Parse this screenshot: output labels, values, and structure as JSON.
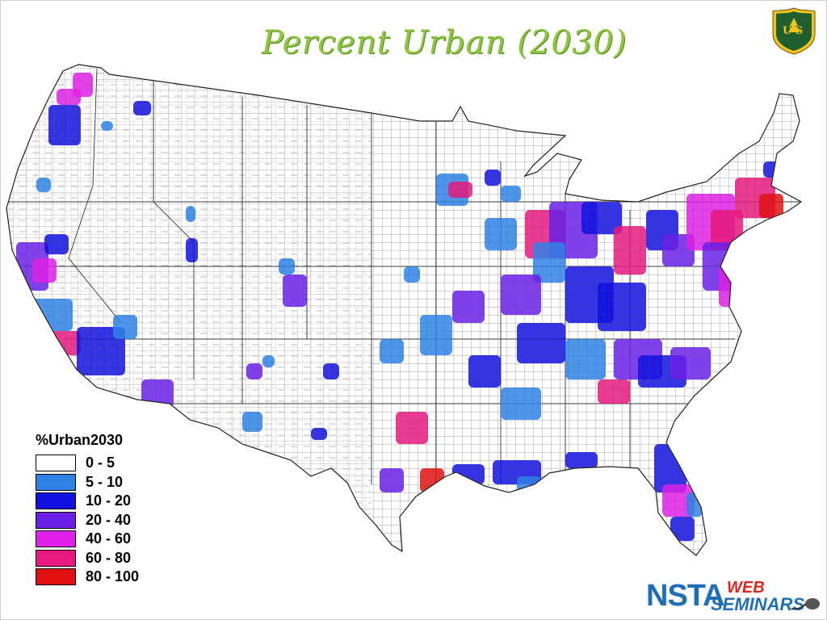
{
  "title": "Percent Urban (2030)",
  "badge": {
    "icon": "forest-service-shield-icon",
    "text": "U S",
    "color": "#1f5e2e",
    "accent": "#f2c318"
  },
  "legend": {
    "title": "%Urban2030",
    "items": [
      {
        "label": "0 - 5",
        "color": "#ffffff"
      },
      {
        "label": "5 - 10",
        "color": "#2e82e6"
      },
      {
        "label": "10 - 20",
        "color": "#1010e0"
      },
      {
        "label": "20 - 40",
        "color": "#6a1ee8"
      },
      {
        "label": "40 - 60",
        "color": "#e020e8"
      },
      {
        "label": "60 - 80",
        "color": "#e8187e"
      },
      {
        "label": "80 - 100",
        "color": "#e01010"
      }
    ]
  },
  "logo": {
    "part1": "NSTA",
    "part2a": "WEB",
    "part2b": "SEMINARS",
    "color1": "#1e6fb5",
    "color2": "#e0261c",
    "icon": "mouse-icon"
  },
  "map": {
    "icon": "us-county-choropleth-map",
    "background": "#ffffff",
    "county_border": "#555555"
  }
}
